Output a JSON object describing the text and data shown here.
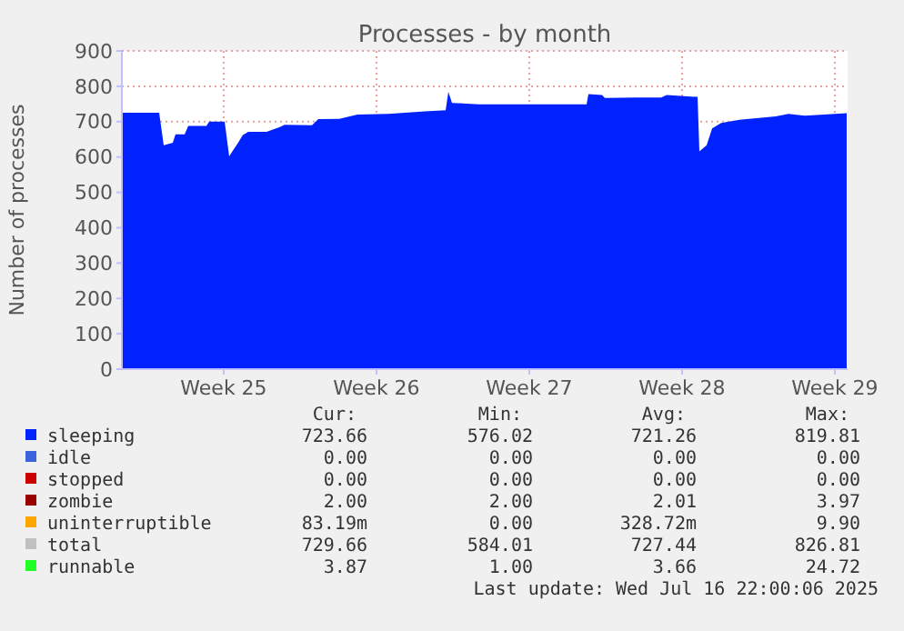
{
  "chart_data": {
    "type": "area",
    "title": "Processes - by month",
    "ylabel": "Number of processes",
    "x": [
      "2025-06-14T08:00",
      "2025-06-16T01:00",
      "2025-06-16T06:00",
      "2025-06-16T16:00",
      "2025-06-16T19:00",
      "2025-06-17T05:00",
      "2025-06-17T09:00",
      "2025-06-18T05:00",
      "2025-06-18T08:00",
      "2025-06-19T01:00",
      "2025-06-19T06:00",
      "2025-06-19T15:00",
      "2025-06-19T21:00",
      "2025-06-20T03:00",
      "2025-06-20T23:00",
      "2025-06-21T13:00",
      "2025-06-21T19:00",
      "2025-06-23T01:00",
      "2025-06-23T08:00",
      "2025-06-24T07:00",
      "2025-06-25T03:00",
      "2025-06-26T13:00",
      "2025-06-28T05:00",
      "2025-06-29T04:00",
      "2025-06-29T07:00",
      "2025-06-29T11:00",
      "2025-06-30T17:00",
      "2025-07-02T04:00",
      "2025-07-03T20:00",
      "2025-07-05T15:00",
      "2025-07-05T17:00",
      "2025-07-06T08:00",
      "2025-07-06T11:00",
      "2025-07-07T22:00",
      "2025-07-09T01:00",
      "2025-07-09T07:00",
      "2025-07-10T17:00",
      "2025-07-10T19:00",
      "2025-07-11T03:00",
      "2025-07-11T09:00",
      "2025-07-11T19:00",
      "2025-07-12T15:00",
      "2025-07-14T07:00",
      "2025-07-14T21:00",
      "2025-07-15T15:00",
      "2025-07-17T13:00"
    ],
    "series": [
      {
        "name": "sleeping",
        "color": "#0022ff",
        "values": [
          725,
          725,
          633,
          640,
          664,
          664,
          688,
          688,
          700,
          700,
          602,
          637,
          662,
          671,
          671,
          684,
          691,
          690,
          707,
          708,
          720,
          722,
          729,
          732,
          784,
          753,
          749,
          749,
          749,
          749,
          778,
          775,
          767,
          768,
          768,
          775,
          770,
          616,
          633,
          681,
          696,
          705,
          715,
          722,
          717,
          724
        ]
      },
      {
        "name": "idle",
        "color": "#3b63dd",
        "values": [
          null,
          null,
          null,
          null,
          null,
          null,
          null,
          null,
          null,
          null,
          null,
          null,
          null,
          null,
          null,
          null,
          null,
          null,
          null,
          null,
          null,
          null,
          null,
          null,
          null,
          null,
          null,
          null,
          null,
          null,
          null,
          null,
          null,
          null,
          null,
          null,
          null,
          null,
          null,
          null,
          null,
          null,
          null,
          null,
          null,
          null
        ]
      },
      {
        "name": "stopped",
        "color": "#cc0000",
        "values": [
          null,
          null,
          null,
          null,
          null,
          null,
          null,
          null,
          null,
          null,
          null,
          null,
          null,
          null,
          null,
          null,
          null,
          null,
          null,
          null,
          null,
          null,
          null,
          null,
          null,
          null,
          null,
          null,
          null,
          null,
          null,
          null,
          null,
          null,
          null,
          null,
          null,
          null,
          null,
          null,
          null,
          null,
          null,
          null,
          null,
          null
        ]
      },
      {
        "name": "zombie",
        "color": "#990000",
        "values": [
          null,
          null,
          null,
          null,
          null,
          null,
          null,
          null,
          null,
          null,
          null,
          null,
          null,
          null,
          null,
          null,
          null,
          null,
          null,
          null,
          null,
          null,
          null,
          null,
          null,
          null,
          null,
          null,
          null,
          null,
          null,
          null,
          null,
          null,
          null,
          null,
          null,
          null,
          null,
          null,
          null,
          null,
          null,
          null,
          null,
          null
        ]
      },
      {
        "name": "uninterruptible",
        "color": "#ffa500",
        "values": [
          null,
          null,
          null,
          null,
          null,
          null,
          null,
          null,
          null,
          null,
          null,
          null,
          null,
          null,
          null,
          null,
          null,
          null,
          null,
          null,
          null,
          null,
          null,
          null,
          null,
          null,
          null,
          null,
          null,
          null,
          null,
          null,
          null,
          null,
          null,
          null,
          null,
          null,
          null,
          null,
          null,
          null,
          null,
          null,
          null,
          null
        ]
      },
      {
        "name": "total",
        "color": "#c0c0c0",
        "values": [
          null,
          null,
          null,
          null,
          null,
          null,
          null,
          null,
          null,
          null,
          null,
          null,
          null,
          null,
          null,
          null,
          null,
          null,
          null,
          null,
          null,
          null,
          null,
          null,
          null,
          null,
          null,
          null,
          null,
          null,
          null,
          null,
          null,
          null,
          null,
          null,
          null,
          null,
          null,
          null,
          null,
          null,
          null,
          null,
          null,
          null
        ]
      },
      {
        "name": "runnable",
        "color": "#22ff22",
        "values": [
          null,
          null,
          null,
          null,
          null,
          null,
          null,
          null,
          null,
          null,
          null,
          null,
          null,
          null,
          null,
          null,
          null,
          null,
          null,
          null,
          null,
          null,
          null,
          null,
          null,
          null,
          null,
          null,
          null,
          null,
          null,
          null,
          null,
          null,
          null,
          null,
          null,
          null,
          null,
          null,
          null,
          null,
          null,
          null,
          null,
          null
        ]
      }
    ],
    "xlim": [
      "2025-06-14T08:00",
      "2025-07-17T14:00"
    ],
    "xticks": [
      {
        "value": "2025-06-19",
        "label": "Week 25"
      },
      {
        "value": "2025-06-26",
        "label": "Week 26"
      },
      {
        "value": "2025-07-03",
        "label": "Week 27"
      },
      {
        "value": "2025-07-10",
        "label": "Week 28"
      },
      {
        "value": "2025-07-17",
        "label": "Week 29"
      }
    ],
    "ylim": [
      0,
      900
    ],
    "yticks": [
      0,
      100,
      200,
      300,
      400,
      500,
      600,
      700,
      800,
      900
    ],
    "grid": true,
    "legend": "bottom",
    "annotations": [
      "Cur:",
      "Min:",
      "Avg:",
      "Max:",
      "723.66",
      "576.02",
      "721.26",
      "819.81",
      "0.00",
      "0.00",
      "0.00",
      "0.00",
      "0.00",
      "0.00",
      "0.00",
      "0.00",
      "2.00",
      "2.00",
      "2.01",
      "3.97",
      "83.19m",
      "0.00",
      "328.72m",
      "9.90",
      "729.66",
      "584.01",
      "727.44",
      "826.81",
      "3.87",
      "1.00",
      "3.66",
      "24.72",
      "Last update: Wed Jul 16 22:00:06 2025"
    ]
  }
}
